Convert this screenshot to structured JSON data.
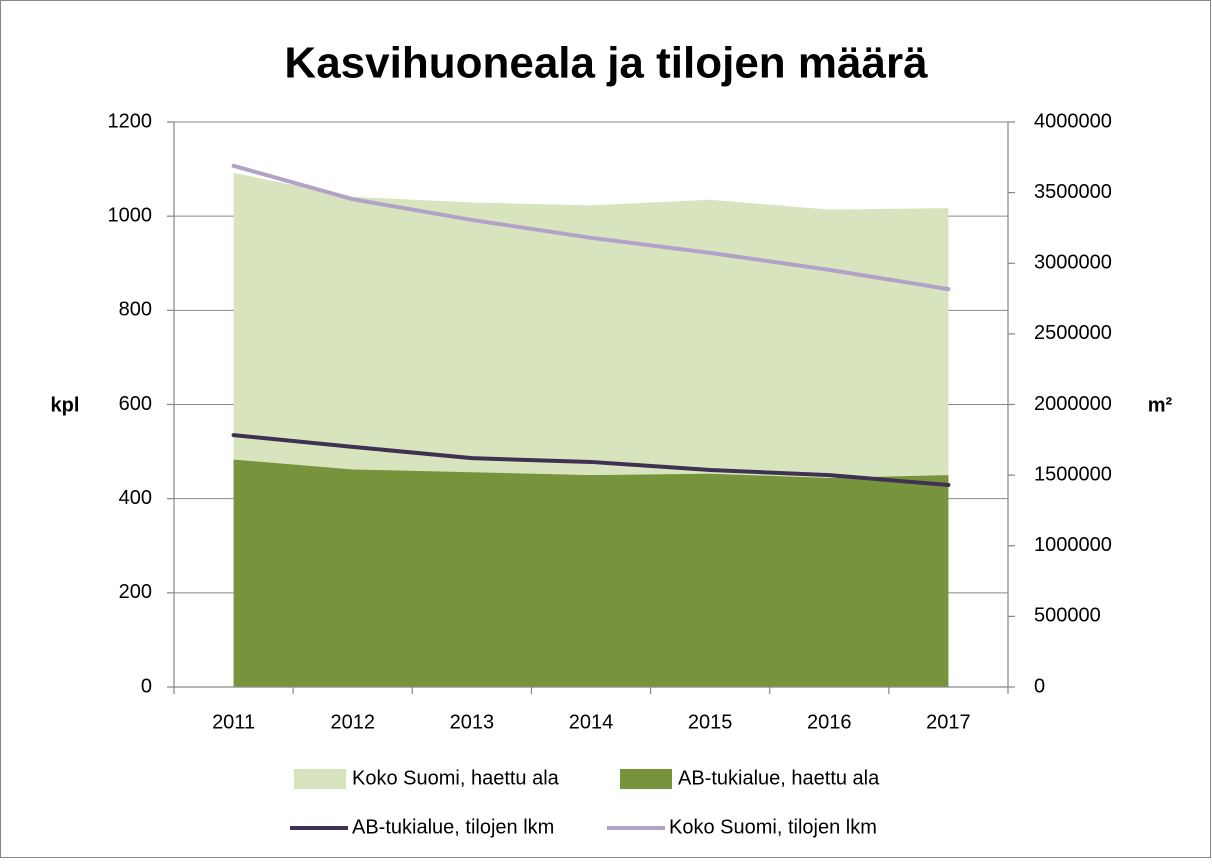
{
  "chart_data": {
    "type": "combo",
    "title": "Kasvihuoneala ja tilojen määrä",
    "ylabel": "kpl",
    "y2label": "m²",
    "categories": [
      "2011",
      "2012",
      "2013",
      "2014",
      "2015",
      "2016",
      "2017"
    ],
    "ylim": [
      0,
      1200
    ],
    "yticks": [
      0,
      200,
      400,
      600,
      800,
      1000,
      1200
    ],
    "y2lim": [
      0,
      4000000
    ],
    "y2ticks": [
      0,
      500000,
      1000000,
      1500000,
      2000000,
      2500000,
      3000000,
      3500000,
      4000000
    ],
    "grid": true,
    "legend": "bottom",
    "series": [
      {
        "name": "Koko Suomi, haettu ala",
        "type": "area",
        "axis": "y2",
        "color": "#d7e4bd",
        "values": [
          3640000,
          3470000,
          3430000,
          3410000,
          3450000,
          3380000,
          3390000
        ]
      },
      {
        "name": "AB-tukialue, haettu ala",
        "type": "area",
        "axis": "y2",
        "color": "#77933c",
        "values": [
          1610000,
          1540000,
          1520000,
          1500000,
          1510000,
          1480000,
          1500000
        ]
      },
      {
        "name": "AB-tukialue, tilojen lkm",
        "type": "line",
        "axis": "y",
        "color": "#3f3151",
        "values": [
          535,
          510,
          486,
          478,
          461,
          450,
          429
        ]
      },
      {
        "name": "Koko Suomi, tilojen lkm",
        "type": "line",
        "axis": "y",
        "color": "#b3a2c7",
        "values": [
          1107,
          1036,
          992,
          954,
          922,
          886,
          845
        ]
      }
    ]
  }
}
